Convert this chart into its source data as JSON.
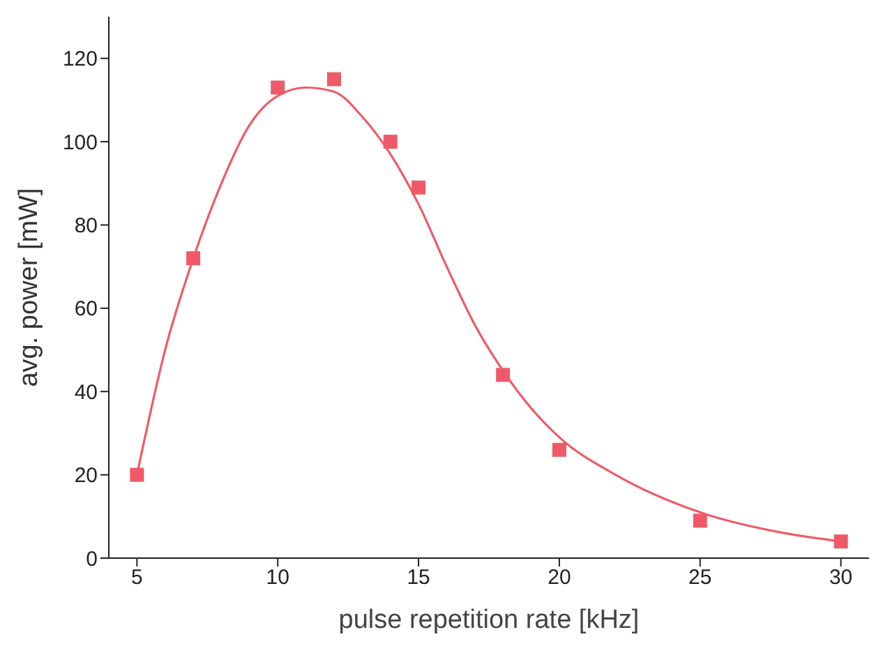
{
  "chart_data": {
    "type": "scatter",
    "xlabel": "pulse repetition rate [kHz]",
    "ylabel": "avg. power [mW]",
    "xlim": [
      4,
      31
    ],
    "xticks": [
      5,
      10,
      15,
      20,
      25,
      30
    ],
    "ylim": [
      0,
      130
    ],
    "yticks": [
      0,
      20,
      40,
      60,
      80,
      100,
      120
    ],
    "grid": false,
    "legend": false,
    "marker": "square",
    "series": [
      {
        "color": "#ef5a68",
        "x": [
          5,
          7,
          10,
          12,
          14,
          15,
          18,
          20,
          25,
          30
        ],
        "values": [
          20,
          72,
          113,
          115,
          100,
          89,
          44,
          26,
          9,
          4
        ]
      },
      {
        "type": "line",
        "color": "#ef5a68",
        "line_style": "solid",
        "marker": "none",
        "x": [
          5,
          6,
          7,
          8,
          9,
          10,
          11,
          12,
          13,
          14,
          15,
          16,
          17,
          18,
          19,
          20,
          22,
          25,
          28,
          30
        ],
        "values": [
          20,
          50,
          72,
          90,
          104,
          111,
          113,
          112,
          106,
          97,
          85,
          70,
          56,
          45,
          36,
          29,
          20,
          11,
          6,
          4
        ]
      }
    ]
  }
}
